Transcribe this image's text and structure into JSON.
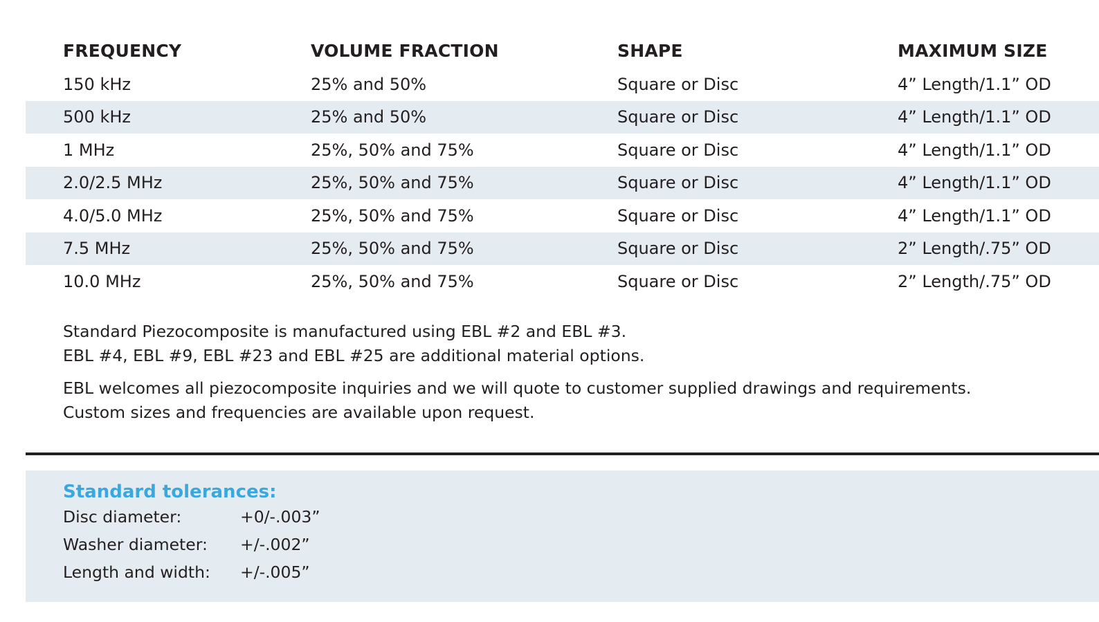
{
  "table": {
    "headers": [
      "FREQUENCY",
      "VOLUME FRACTION",
      "SHAPE",
      "MAXIMUM SIZE"
    ],
    "rows": [
      [
        "150 kHz",
        "25% and 50%",
        "Square or Disc",
        "4” Length/1.1” OD"
      ],
      [
        "500 kHz",
        "25% and 50%",
        "Square or Disc",
        "4” Length/1.1” OD"
      ],
      [
        "1 MHz",
        "25%, 50% and 75%",
        "Square or Disc",
        "4” Length/1.1” OD"
      ],
      [
        "2.0/2.5 MHz",
        "25%, 50% and 75%",
        "Square or Disc",
        "4” Length/1.1” OD"
      ],
      [
        "4.0/5.0 MHz",
        "25%, 50% and 75%",
        "Square or Disc",
        "4” Length/1.1” OD"
      ],
      [
        "7.5 MHz",
        "25%, 50% and 75%",
        "Square or Disc",
        "2” Length/.75” OD"
      ],
      [
        "10.0 MHz",
        "25%, 50% and 75%",
        "Square or Disc",
        "2” Length/.75” OD"
      ]
    ]
  },
  "notes": {
    "line1": "Standard Piezocomposite is manufactured using EBL #2 and EBL #3.",
    "line2": "EBL #4, EBL #9, EBL #23 and EBL #25 are additional material options.",
    "line3": "EBL welcomes all piezocomposite inquiries and we will quote to customer supplied drawings and requirements.",
    "line4": "Custom sizes and frequencies are available upon request."
  },
  "tolerances": {
    "title": "Standard tolerances:",
    "items": [
      {
        "label": "Disc diameter:",
        "value": "+0/-.003”"
      },
      {
        "label": "Washer diameter:",
        "value": "+/-.002”"
      },
      {
        "label": "Length and width:",
        "value": "+/-.005”"
      }
    ]
  },
  "colors": {
    "shade": "#e4ecf1",
    "accent": "#3aa8dc",
    "text": "#231f20"
  }
}
